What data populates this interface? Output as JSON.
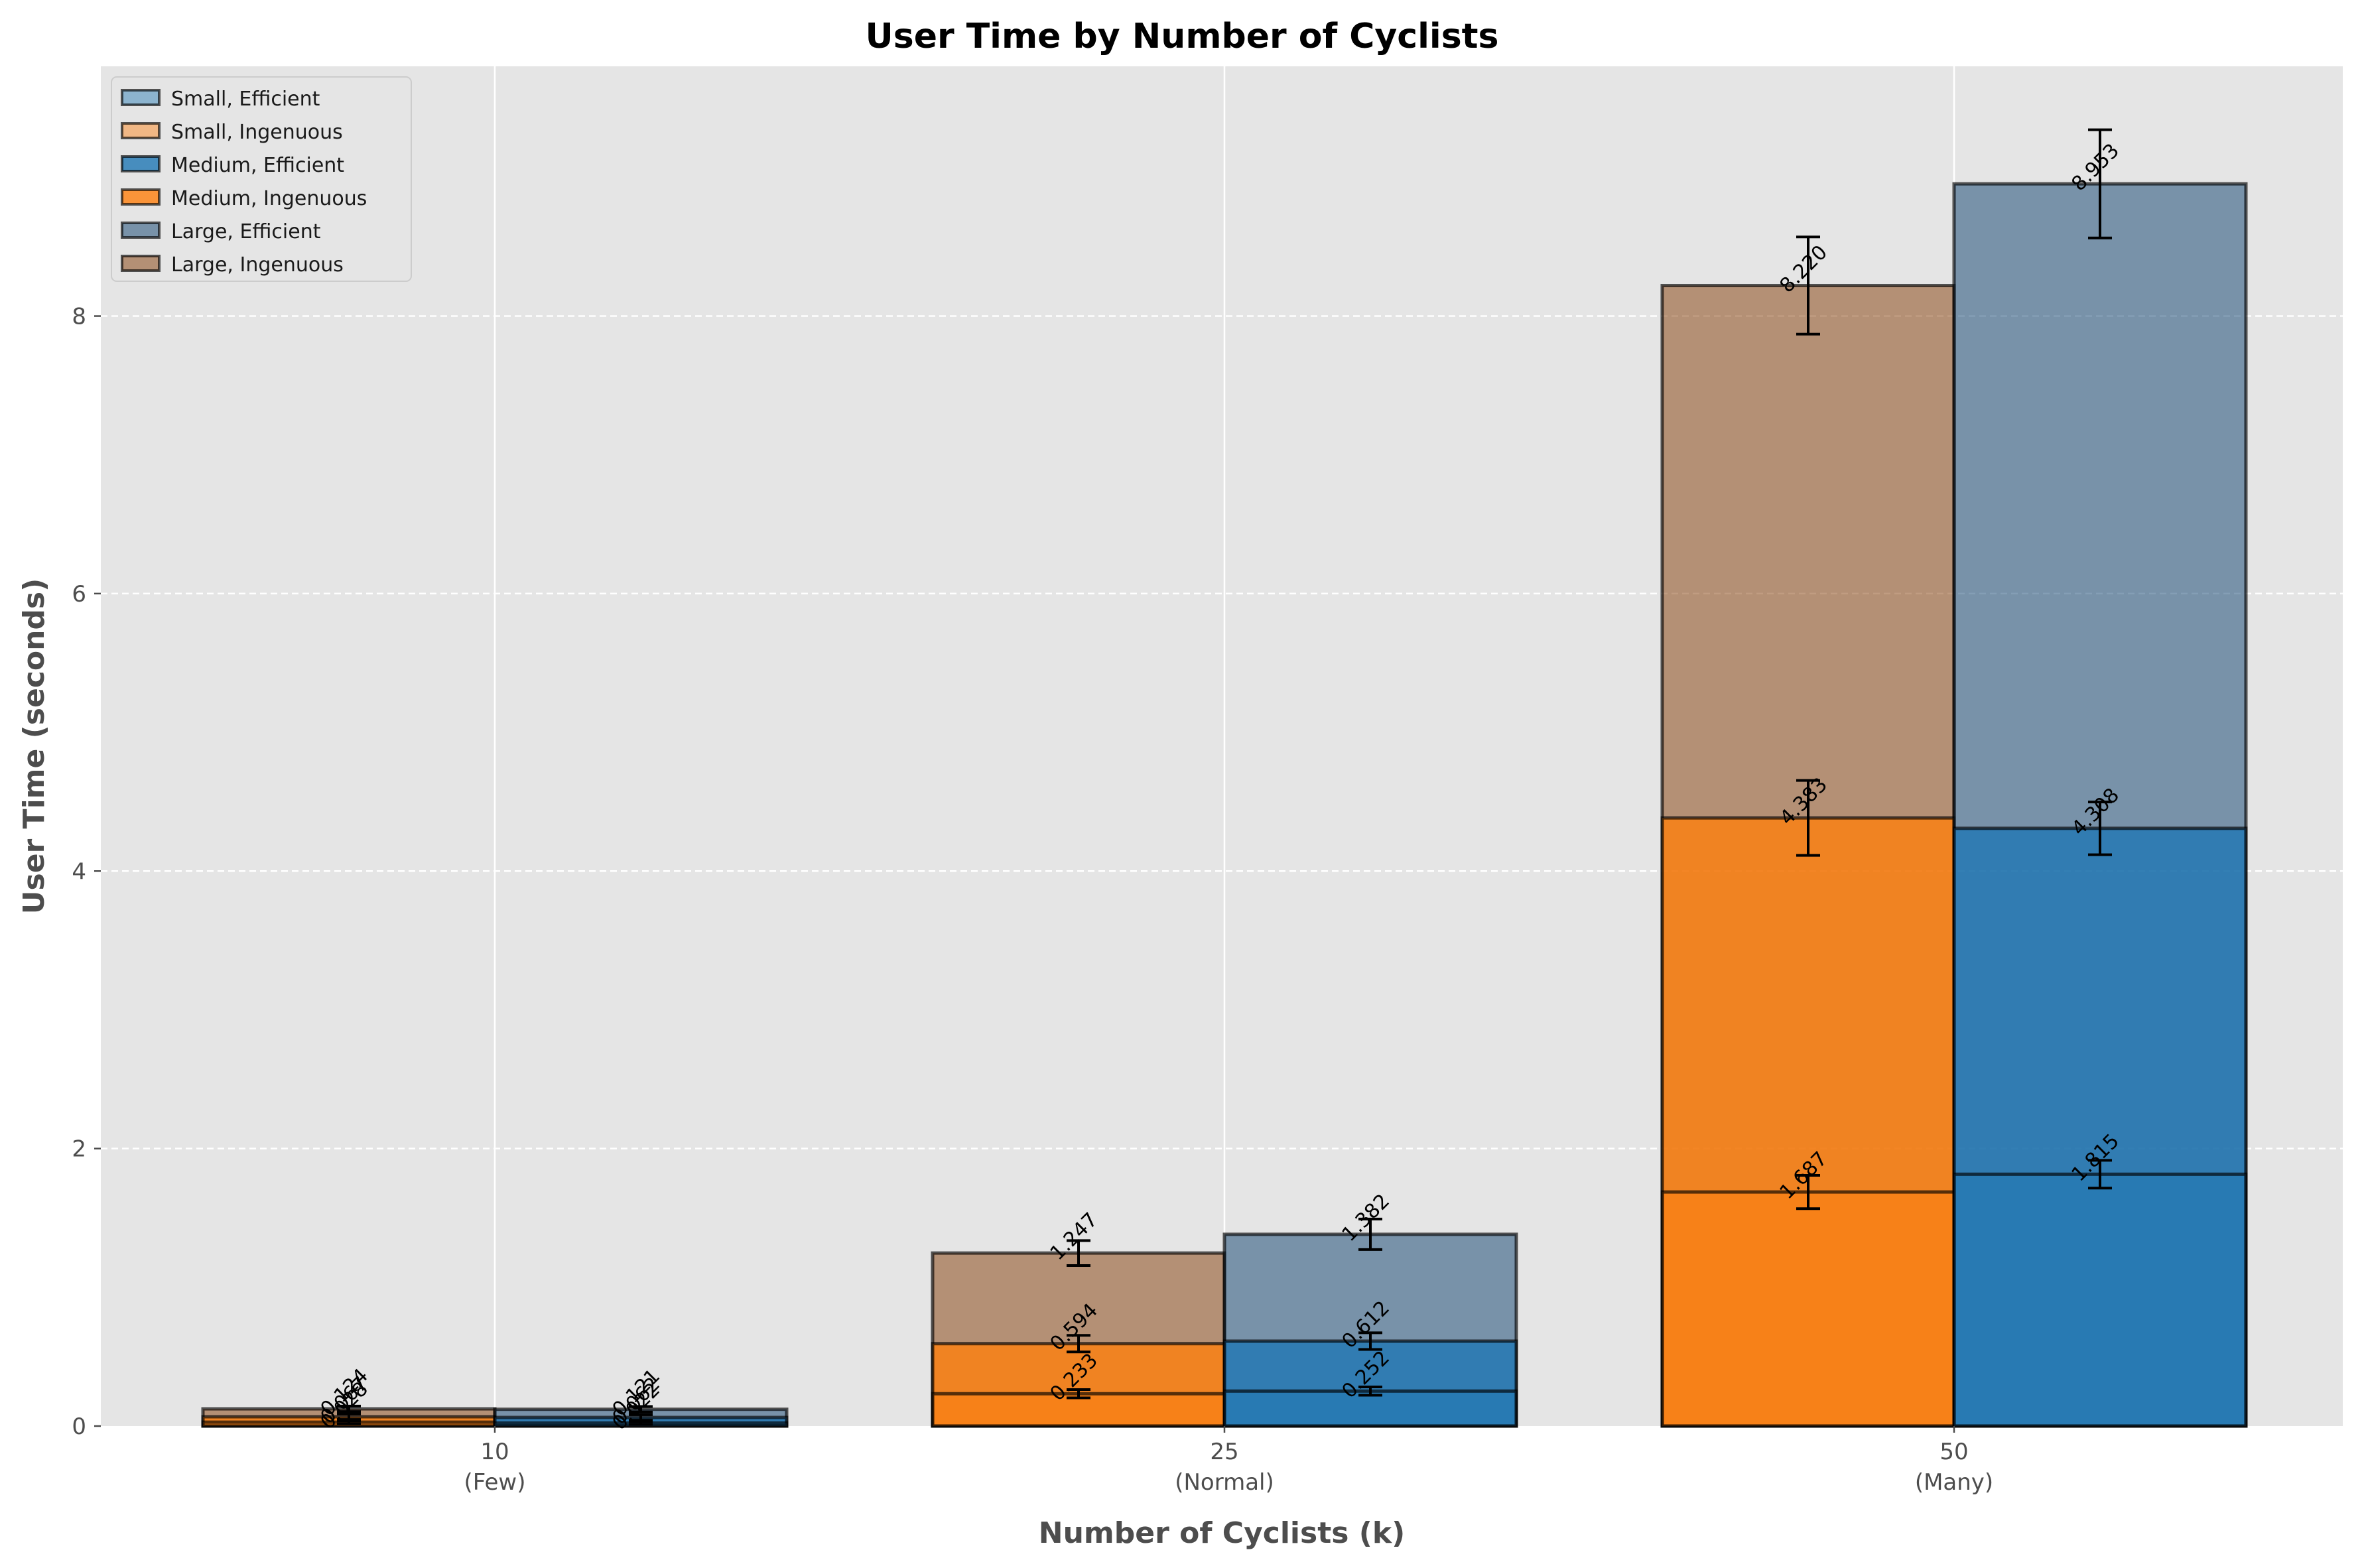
{
  "chart_data": {
    "type": "bar",
    "title": "User Time by Number of Cyclists",
    "xlabel": "Number of Cyclists (k)",
    "ylabel": "User Time (seconds)",
    "categories": [
      "10",
      "25",
      "50"
    ],
    "category_sublabels": [
      "(Few)",
      "(Normal)",
      "(Many)"
    ],
    "ylim": [
      0,
      9.8
    ],
    "yticks": [
      0,
      2,
      4,
      6,
      8
    ],
    "grid": true,
    "legend_position": "top-left",
    "groups": [
      "Ingenuous",
      "Efficient"
    ],
    "series": [
      {
        "name": "Small, Efficient",
        "size": "Small",
        "group": "Efficient",
        "color": "#1f77b4",
        "values": [
          0.022,
          0.252,
          1.815
        ],
        "errors": [
          0.01,
          0.03,
          0.1
        ],
        "labels": [
          "0.022",
          "0.252",
          "1.815"
        ]
      },
      {
        "name": "Small, Ingenuous",
        "size": "Small",
        "group": "Ingenuous",
        "color": "#ff7f0e",
        "values": [
          0.028,
          0.233,
          1.687
        ],
        "errors": [
          0.01,
          0.03,
          0.12
        ],
        "labels": [
          "0.028",
          "0.233",
          "1.687"
        ]
      },
      {
        "name": "Medium, Efficient",
        "size": "Medium",
        "group": "Efficient",
        "color": "#1f77b4",
        "values": [
          0.062,
          0.612,
          4.308
        ],
        "errors": [
          0.02,
          0.06,
          0.19
        ],
        "labels": [
          "0.062",
          "0.612",
          "4.308"
        ]
      },
      {
        "name": "Medium, Ingenuous",
        "size": "Medium",
        "group": "Ingenuous",
        "color": "#ff7f0e",
        "values": [
          0.067,
          0.594,
          4.383
        ],
        "errors": [
          0.02,
          0.06,
          0.27
        ],
        "labels": [
          "0.067",
          "0.594",
          "4.383"
        ]
      },
      {
        "name": "Large, Efficient",
        "size": "Large",
        "group": "Efficient",
        "color": "#1f4e79",
        "values": [
          0.121,
          1.382,
          8.953
        ],
        "errors": [
          0.02,
          0.11,
          0.39
        ],
        "labels": [
          "0.121",
          "1.382",
          "8.953"
        ]
      },
      {
        "name": "Large, Ingenuous",
        "size": "Large",
        "group": "Ingenuous",
        "color": "#8c4a1a",
        "values": [
          0.124,
          1.247,
          8.22
        ],
        "errors": [
          0.02,
          0.09,
          0.35
        ],
        "labels": [
          "0.124",
          "1.247",
          "8.220"
        ]
      }
    ]
  }
}
